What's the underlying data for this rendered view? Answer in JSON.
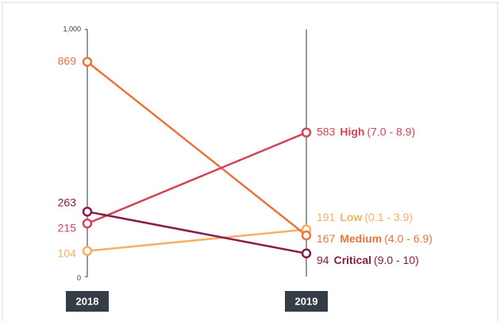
{
  "chart_data": {
    "type": "slope",
    "categories": [
      "2018",
      "2019"
    ],
    "ylim": [
      0,
      1000
    ],
    "yticks": [
      0,
      {
        "value": 1000,
        "label": "1,000"
      }
    ],
    "series": [
      {
        "name": "Low",
        "range": "(0.1 - 3.9)",
        "color": "#f7b064",
        "values": [
          104,
          191
        ]
      },
      {
        "name": "Medium",
        "range": "(4.0 - 6.9)",
        "color": "#ea7439",
        "values": [
          869,
          167
        ]
      },
      {
        "name": "High",
        "range": "(7.0 - 8.9)",
        "color": "#d04456",
        "values": [
          215,
          583
        ]
      },
      {
        "name": "Critical",
        "range": "(9.0 - 10)",
        "color": "#8c1a47",
        "values": [
          263,
          94
        ]
      }
    ]
  }
}
